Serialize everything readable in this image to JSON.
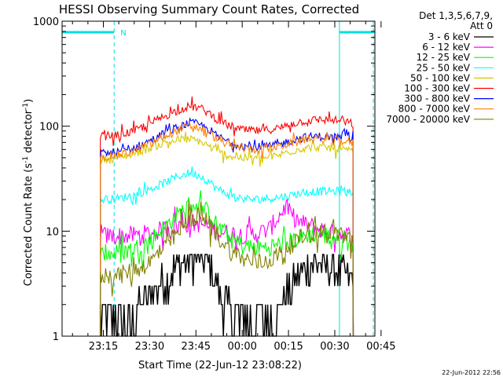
{
  "chart_data": {
    "type": "line",
    "title": "HESSI Observing Summary Count Rates, Corrected",
    "ylabel_main": "Corrected Count Rate (s",
    "ylabel_sup1": "-1",
    "ylabel_mid": " detector",
    "ylabel_sup2": "-1",
    "ylabel_end": ")",
    "xlabel": "Start Time (22-Jun-12 23:08:22)",
    "datestamp": "22-Jun-2012 22:56",
    "y_scale": "log",
    "ylim": [
      1,
      1000
    ],
    "xlim_minutes": [
      -58.37,
      43.0
    ],
    "x_ticks": [
      {
        "label": "23:15",
        "t": -45
      },
      {
        "label": "23:30",
        "t": -30
      },
      {
        "label": "23:45",
        "t": -15
      },
      {
        "label": "00:00",
        "t": 0
      },
      {
        "label": "00:15",
        "t": 15
      },
      {
        "label": "00:30",
        "t": 30
      },
      {
        "label": "00:45",
        "t": 45
      }
    ],
    "y_ticks": [
      {
        "label": "1",
        "v": 1
      },
      {
        "label": "10",
        "v": 10
      },
      {
        "label": "100",
        "v": 100
      },
      {
        "label": "1000",
        "v": 1000
      }
    ],
    "legend": {
      "header_line1": "Det 1,3,5,6,7,9,",
      "header_line2": "Att 0",
      "placement": "top-right, outside plot"
    },
    "flags": {
      "night_marker": "N",
      "night_intervals": [
        [
          -58.37,
          -41.5
        ],
        [
          31.5,
          43.0
        ]
      ],
      "saa_lines_t": [
        -41.5,
        42.5
      ],
      "solid_lines_t": [
        31.5
      ],
      "flag_color": "#00e0e0"
    },
    "series": [
      {
        "name": "3 - 6 keV",
        "color": "#000000",
        "points": [
          [
            -46,
            1.5
          ],
          [
            -40,
            1.5
          ],
          [
            -35,
            1.6
          ],
          [
            -30,
            2.5
          ],
          [
            -25,
            3.5
          ],
          [
            -20,
            5.0
          ],
          [
            -17,
            5.6
          ],
          [
            -14,
            5.8
          ],
          [
            -11,
            5.0
          ],
          [
            -8,
            3.0
          ],
          [
            -5,
            2.0
          ],
          [
            -2,
            1.5
          ],
          [
            2,
            1.5
          ],
          [
            6,
            1.5
          ],
          [
            10,
            1.6
          ],
          [
            13,
            2.2
          ],
          [
            16,
            3.0
          ],
          [
            19,
            4.0
          ],
          [
            22,
            5.0
          ],
          [
            26,
            5.0
          ],
          [
            30,
            4.5
          ],
          [
            33,
            4.0
          ],
          [
            36,
            3.0
          ]
        ]
      },
      {
        "name": "6 - 12 keV",
        "color": "#ff00ff",
        "points": [
          [
            -46,
            9.0
          ],
          [
            -40,
            9.0
          ],
          [
            -35,
            9.2
          ],
          [
            -30,
            9.5
          ],
          [
            -25,
            10.5
          ],
          [
            -20,
            11.5
          ],
          [
            -17,
            12.0
          ],
          [
            -14,
            11.8
          ],
          [
            -11,
            11.0
          ],
          [
            -8,
            10.0
          ],
          [
            -4,
            9.5
          ],
          [
            0,
            9.3
          ],
          [
            5,
            9.5
          ],
          [
            9,
            10.5
          ],
          [
            12,
            14.0
          ],
          [
            14,
            17.0
          ],
          [
            16,
            14.0
          ],
          [
            19,
            12.0
          ],
          [
            23,
            11.0
          ],
          [
            27,
            10.0
          ],
          [
            31,
            9.5
          ],
          [
            36,
            9.0
          ]
        ]
      },
      {
        "name": "12 - 25 keV",
        "color": "#00ff00",
        "points": [
          [
            -46,
            6.0
          ],
          [
            -40,
            6.2
          ],
          [
            -35,
            6.8
          ],
          [
            -30,
            8.0
          ],
          [
            -25,
            11.0
          ],
          [
            -20,
            15.0
          ],
          [
            -17,
            18.0
          ],
          [
            -14,
            17.5
          ],
          [
            -11,
            15.0
          ],
          [
            -8,
            11.0
          ],
          [
            -4,
            8.5
          ],
          [
            0,
            7.2
          ],
          [
            4,
            7.0
          ],
          [
            8,
            7.0
          ],
          [
            12,
            7.5
          ],
          [
            16,
            8.0
          ],
          [
            20,
            9.0
          ],
          [
            24,
            9.5
          ],
          [
            28,
            9.0
          ],
          [
            32,
            8.5
          ],
          [
            36,
            7.5
          ]
        ]
      },
      {
        "name": "25 - 50 keV",
        "color": "#00ffff",
        "points": [
          [
            -46,
            20
          ],
          [
            -40,
            20.5
          ],
          [
            -35,
            22
          ],
          [
            -30,
            25
          ],
          [
            -25,
            29
          ],
          [
            -20,
            34
          ],
          [
            -17,
            36
          ],
          [
            -14,
            34
          ],
          [
            -11,
            30
          ],
          [
            -8,
            25
          ],
          [
            -4,
            22
          ],
          [
            0,
            20.5
          ],
          [
            4,
            20
          ],
          [
            8,
            20.5
          ],
          [
            12,
            21
          ],
          [
            16,
            22
          ],
          [
            20,
            23.5
          ],
          [
            24,
            24
          ],
          [
            28,
            24
          ],
          [
            32,
            24
          ],
          [
            36,
            24
          ]
        ]
      },
      {
        "name": "50 - 100 keV",
        "color": "#d8c800",
        "points": [
          [
            -46,
            48
          ],
          [
            -40,
            50
          ],
          [
            -35,
            55
          ],
          [
            -30,
            62
          ],
          [
            -25,
            70
          ],
          [
            -20,
            75
          ],
          [
            -17,
            75
          ],
          [
            -14,
            72
          ],
          [
            -11,
            65
          ],
          [
            -8,
            57
          ],
          [
            -4,
            52
          ],
          [
            0,
            50
          ],
          [
            4,
            49
          ],
          [
            8,
            50
          ],
          [
            12,
            53
          ],
          [
            16,
            58
          ],
          [
            20,
            62
          ],
          [
            24,
            63
          ],
          [
            28,
            62
          ],
          [
            32,
            60
          ],
          [
            36,
            56
          ]
        ]
      },
      {
        "name": "100 - 300 keV",
        "color": "#ff0000",
        "points": [
          [
            -46,
            80
          ],
          [
            -40,
            82
          ],
          [
            -35,
            90
          ],
          [
            -30,
            105
          ],
          [
            -25,
            125
          ],
          [
            -20,
            145
          ],
          [
            -17,
            155
          ],
          [
            -14,
            150
          ],
          [
            -11,
            135
          ],
          [
            -8,
            115
          ],
          [
            -4,
            100
          ],
          [
            0,
            92
          ],
          [
            4,
            90
          ],
          [
            8,
            92
          ],
          [
            12,
            96
          ],
          [
            16,
            105
          ],
          [
            20,
            112
          ],
          [
            24,
            115
          ],
          [
            28,
            115
          ],
          [
            32,
            112
          ],
          [
            36,
            105
          ]
        ]
      },
      {
        "name": "300 - 800 keV",
        "color": "#0000ff",
        "points": [
          [
            -46,
            55
          ],
          [
            -40,
            57
          ],
          [
            -35,
            62
          ],
          [
            -30,
            72
          ],
          [
            -25,
            86
          ],
          [
            -20,
            100
          ],
          [
            -17,
            108
          ],
          [
            -14,
            104
          ],
          [
            -11,
            94
          ],
          [
            -8,
            80
          ],
          [
            -4,
            70
          ],
          [
            0,
            65
          ],
          [
            4,
            63
          ],
          [
            8,
            64
          ],
          [
            12,
            67
          ],
          [
            16,
            73
          ],
          [
            20,
            78
          ],
          [
            24,
            80
          ],
          [
            28,
            80
          ],
          [
            32,
            78
          ],
          [
            36,
            74
          ]
        ]
      },
      {
        "name": "800 - 7000 keV",
        "color": "#ff8000",
        "points": [
          [
            -46,
            51
          ],
          [
            -40,
            53
          ],
          [
            -35,
            58
          ],
          [
            -30,
            67
          ],
          [
            -25,
            80
          ],
          [
            -20,
            93
          ],
          [
            -17,
            100
          ],
          [
            -14,
            97
          ],
          [
            -11,
            88
          ],
          [
            -8,
            75
          ],
          [
            -4,
            66
          ],
          [
            0,
            62
          ],
          [
            4,
            60
          ],
          [
            8,
            61
          ],
          [
            12,
            64
          ],
          [
            16,
            69
          ],
          [
            20,
            74
          ],
          [
            24,
            76
          ],
          [
            28,
            75
          ],
          [
            32,
            73
          ],
          [
            36,
            69
          ]
        ]
      },
      {
        "name": "7000 - 20000 keV",
        "color": "#808000",
        "points": [
          [
            -46,
            3.8
          ],
          [
            -40,
            3.8
          ],
          [
            -35,
            4.2
          ],
          [
            -30,
            5.0
          ],
          [
            -25,
            7.0
          ],
          [
            -20,
            10.0
          ],
          [
            -17,
            13.0
          ],
          [
            -14,
            14.0
          ],
          [
            -11,
            12.0
          ],
          [
            -8,
            9.0
          ],
          [
            -4,
            6.5
          ],
          [
            0,
            5.5
          ],
          [
            4,
            5.0
          ],
          [
            8,
            5.2
          ],
          [
            12,
            6.0
          ],
          [
            16,
            7.5
          ],
          [
            20,
            9.0
          ],
          [
            24,
            10.0
          ],
          [
            28,
            10.0
          ],
          [
            32,
            9.5
          ],
          [
            36,
            8.5
          ]
        ]
      }
    ]
  }
}
